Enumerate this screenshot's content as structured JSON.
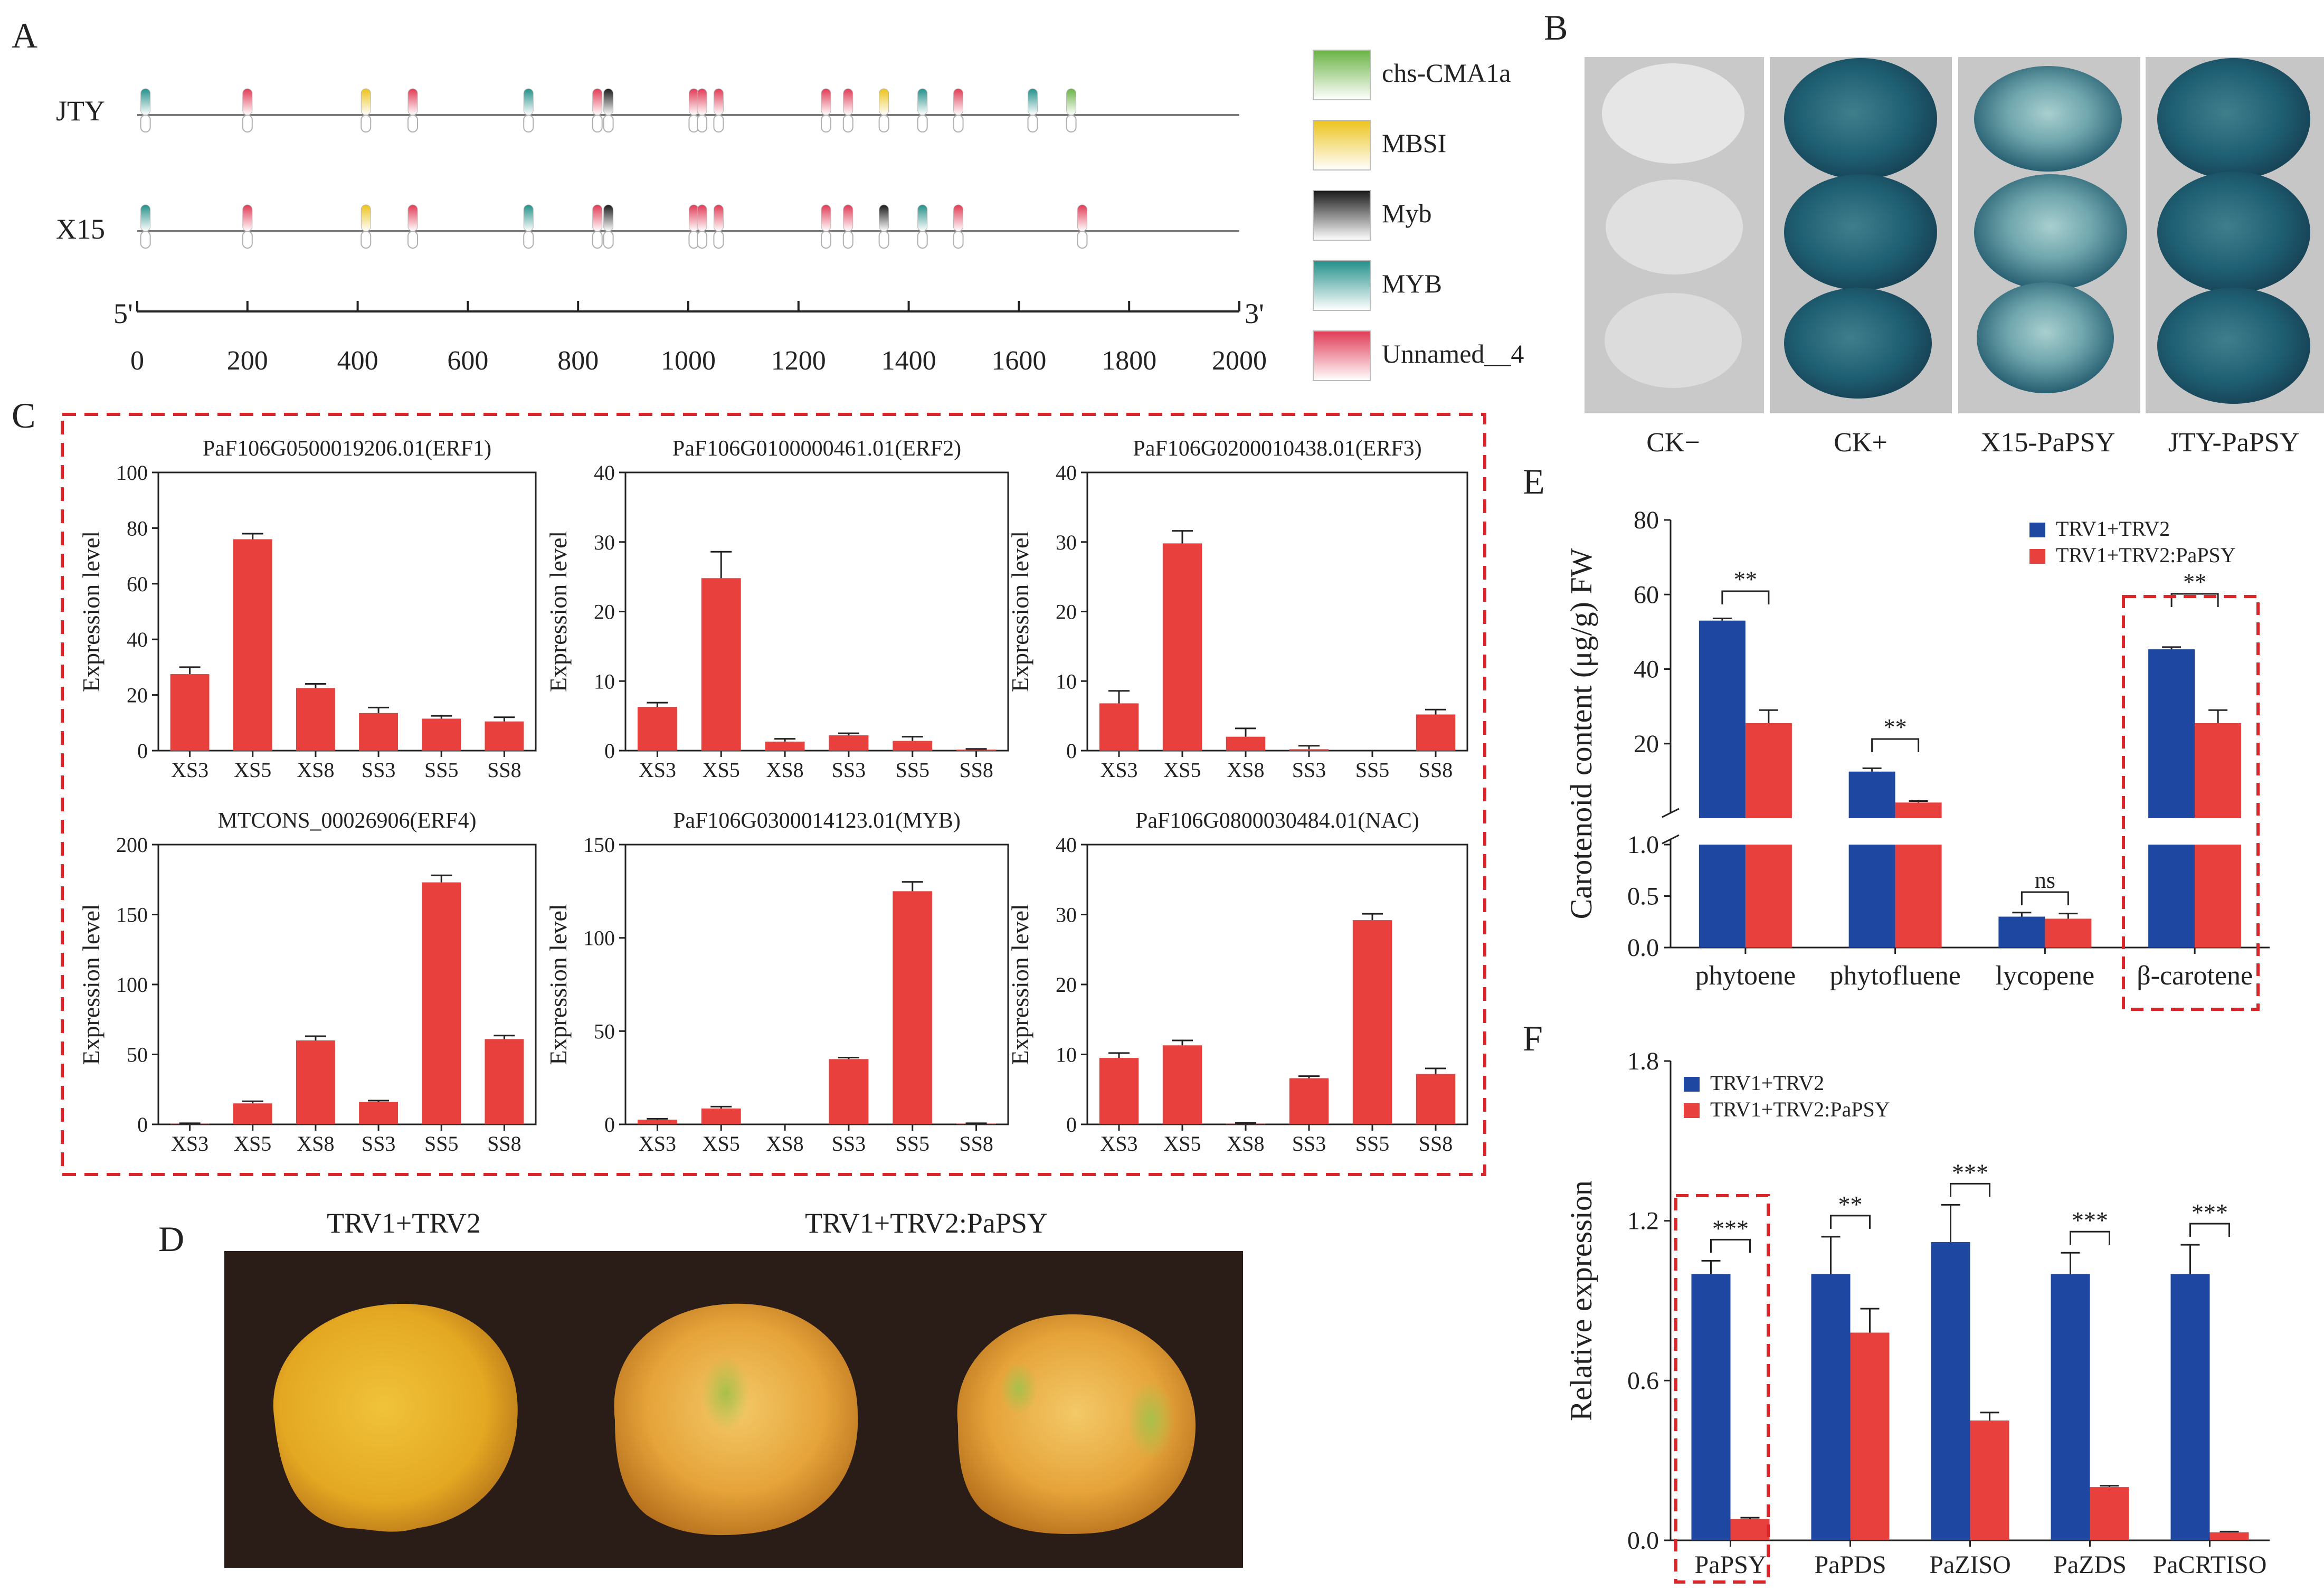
{
  "colors": {
    "red": "#e8413d",
    "blue": "#1d47a0",
    "dashed_red": "#d8262a",
    "axis": "#222222",
    "line": "#7a7a7a",
    "photo_bg": "#2a1d18",
    "plate_bg": "#c9c9c9"
  },
  "panel_letters": {
    "A": "A",
    "B": "B",
    "C": "C",
    "D": "D",
    "E": "E",
    "F": "F"
  },
  "panelA": {
    "sequences": [
      {
        "name": "JTY",
        "elements": [
          {
            "pos": 15,
            "type": "MYB"
          },
          {
            "pos": 200,
            "type": "Unnamed__4"
          },
          {
            "pos": 415,
            "type": "MBSI"
          },
          {
            "pos": 500,
            "type": "Unnamed__4"
          },
          {
            "pos": 710,
            "type": "MYB"
          },
          {
            "pos": 835,
            "type": "Unnamed__4"
          },
          {
            "pos": 855,
            "type": "Myb"
          },
          {
            "pos": 1010,
            "type": "Unnamed__4"
          },
          {
            "pos": 1025,
            "type": "Unnamed__4"
          },
          {
            "pos": 1055,
            "type": "Unnamed__4"
          },
          {
            "pos": 1250,
            "type": "Unnamed__4"
          },
          {
            "pos": 1290,
            "type": "Unnamed__4"
          },
          {
            "pos": 1355,
            "type": "MBSI"
          },
          {
            "pos": 1425,
            "type": "MYB"
          },
          {
            "pos": 1490,
            "type": "Unnamed__4"
          },
          {
            "pos": 1625,
            "type": "MYB"
          },
          {
            "pos": 1695,
            "type": "chs-CMA1a"
          }
        ]
      },
      {
        "name": "X15",
        "elements": [
          {
            "pos": 15,
            "type": "MYB"
          },
          {
            "pos": 200,
            "type": "Unnamed__4"
          },
          {
            "pos": 415,
            "type": "MBSI"
          },
          {
            "pos": 500,
            "type": "Unnamed__4"
          },
          {
            "pos": 710,
            "type": "MYB"
          },
          {
            "pos": 835,
            "type": "Unnamed__4"
          },
          {
            "pos": 855,
            "type": "Myb"
          },
          {
            "pos": 1010,
            "type": "Unnamed__4"
          },
          {
            "pos": 1025,
            "type": "Unnamed__4"
          },
          {
            "pos": 1055,
            "type": "Unnamed__4"
          },
          {
            "pos": 1250,
            "type": "Unnamed__4"
          },
          {
            "pos": 1290,
            "type": "Unnamed__4"
          },
          {
            "pos": 1355,
            "type": "Myb"
          },
          {
            "pos": 1425,
            "type": "MYB"
          },
          {
            "pos": 1490,
            "type": "Unnamed__4"
          },
          {
            "pos": 1715,
            "type": "Unnamed__4"
          }
        ]
      }
    ],
    "axis": {
      "min": 0,
      "max": 2000,
      "ticks": [
        0,
        200,
        400,
        600,
        800,
        1000,
        1200,
        1400,
        1600,
        1800,
        2000
      ],
      "left_label": "5'",
      "right_label": "3'"
    },
    "legend": [
      {
        "name": "chs-CMA1a",
        "color": "#6ab344"
      },
      {
        "name": "MBSI",
        "color": "#ecc31c"
      },
      {
        "name": "Myb",
        "color": "#1a1a1a"
      },
      {
        "name": "MYB",
        "color": "#23908a"
      },
      {
        "name": "Unnamed__4",
        "color": "#e03a55"
      }
    ]
  },
  "panelB": {
    "labels": [
      "CK−",
      "CK+",
      "X15-PaPSY",
      "JTY-PaPSY"
    ]
  },
  "chart_data": [
    {
      "type": "bar",
      "id": "C1",
      "title": "PaF106G0500019206.01(ERF1)",
      "ylabel": "Expression level",
      "categories": [
        "XS3",
        "XS5",
        "XS8",
        "SS3",
        "SS5",
        "SS8"
      ],
      "values": [
        27.5,
        76,
        22.5,
        13.5,
        11.5,
        10.5
      ],
      "errors": [
        2.5,
        2,
        1.5,
        2,
        1,
        1.5
      ],
      "ylim": [
        0,
        100
      ],
      "yticks": [
        "0",
        "20",
        "40",
        "60",
        "80",
        "100"
      ]
    },
    {
      "type": "bar",
      "id": "C2",
      "title": "PaF106G0100000461.01(ERF2)",
      "ylabel": "Expression level",
      "categories": [
        "XS3",
        "XS5",
        "XS8",
        "SS3",
        "SS5",
        "SS8"
      ],
      "values": [
        6.3,
        24.8,
        1.3,
        2.2,
        1.4,
        0.15
      ],
      "errors": [
        0.6,
        3.8,
        0.4,
        0.3,
        0.6,
        0.1
      ],
      "ylim": [
        0,
        40
      ],
      "yticks": [
        "0",
        "10",
        "20",
        "30",
        "40"
      ]
    },
    {
      "type": "bar",
      "id": "C3",
      "title": "PaF106G0200010438.01(ERF3)",
      "ylabel": "Expression level",
      "categories": [
        "XS3",
        "XS5",
        "XS8",
        "SS3",
        "SS5",
        "SS8"
      ],
      "values": [
        6.8,
        29.8,
        2,
        0.2,
        0,
        5.2
      ],
      "errors": [
        1.8,
        1.8,
        1.2,
        0.5,
        0,
        0.7
      ],
      "ylim": [
        0,
        40
      ],
      "yticks": [
        "0",
        "10",
        "20",
        "30",
        "40"
      ]
    },
    {
      "type": "bar",
      "id": "C4",
      "title": "MTCONS_00026906(ERF4)",
      "ylabel": "Expression level",
      "categories": [
        "XS3",
        "XS5",
        "XS8",
        "SS3",
        "SS5",
        "SS8"
      ],
      "values": [
        0.5,
        15,
        60,
        16,
        173,
        61
      ],
      "errors": [
        0.3,
        1.5,
        3,
        1,
        5,
        2.5
      ],
      "ylim": [
        0,
        200
      ],
      "yticks": [
        "0",
        "50",
        "100",
        "150",
        "200"
      ]
    },
    {
      "type": "bar",
      "id": "C5",
      "title": "PaF106G0300014123.01(MYB)",
      "ylabel": "Expression level",
      "categories": [
        "XS3",
        "XS5",
        "XS8",
        "SS3",
        "SS5",
        "SS8"
      ],
      "values": [
        2.5,
        8.5,
        0,
        35,
        125,
        0.4
      ],
      "errors": [
        0.5,
        1,
        0,
        0.8,
        5,
        0.2
      ],
      "ylim": [
        0,
        150
      ],
      "yticks": [
        "0",
        "50",
        "100",
        "150"
      ]
    },
    {
      "type": "bar",
      "id": "C6",
      "title": "PaF106G0800030484.01(NAC)",
      "ylabel": "Expression level",
      "categories": [
        "XS3",
        "XS5",
        "XS8",
        "SS3",
        "SS5",
        "SS8"
      ],
      "values": [
        9.5,
        11.3,
        0.1,
        6.6,
        29.2,
        7.2
      ],
      "errors": [
        0.7,
        0.7,
        0.1,
        0.3,
        0.9,
        0.8
      ],
      "ylim": [
        0,
        40
      ],
      "yticks": [
        "0",
        "10",
        "20",
        "30",
        "40"
      ]
    },
    {
      "type": "bar",
      "id": "E",
      "ylabel": "Carotenoid content (μg/g) FW",
      "categories": [
        "phytoene",
        "phytofluene",
        "lycopene",
        "β-carotene"
      ],
      "series": [
        {
          "name": "TRV1+TRV2",
          "values": [
            53,
            12.5,
            0.3,
            45.3
          ],
          "errors": [
            0.6,
            0.9,
            0.04,
            0.6
          ]
        },
        {
          "name": "TRV1+TRV2:PaPSY",
          "values": [
            25.5,
            4.2,
            0.28,
            25.5
          ],
          "errors": [
            3.5,
            0.4,
            0.05,
            3.5
          ]
        }
      ],
      "yticks_top": [
        "20",
        "40",
        "60",
        "80"
      ],
      "yticks_bottom": [
        "0.0",
        "0.5",
        "1.0"
      ],
      "significance": [
        "**",
        "**",
        "ns",
        "**"
      ]
    },
    {
      "type": "bar",
      "id": "F",
      "ylabel": "Relative expression",
      "categories": [
        "PaPSY",
        "PaPDS",
        "PaZISO",
        "PaZDS",
        "PaCRTISO"
      ],
      "series": [
        {
          "name": "TRV1+TRV2",
          "values": [
            1.0,
            1.0,
            1.12,
            1.0,
            1.0
          ],
          "errors": [
            0.05,
            0.14,
            0.14,
            0.08,
            0.11
          ]
        },
        {
          "name": "TRV1+TRV2:PaPSY",
          "values": [
            0.08,
            0.78,
            0.45,
            0.2,
            0.03
          ],
          "errors": [
            0.005,
            0.09,
            0.03,
            0.005,
            0.003
          ]
        }
      ],
      "ylim": [
        0,
        1.8
      ],
      "yticks": [
        "0.0",
        "0.6",
        "1.2",
        "1.8"
      ],
      "significance": [
        "***",
        "**",
        "***",
        "***",
        "***"
      ]
    }
  ],
  "panelD": {
    "labels": [
      "TRV1+TRV2",
      "TRV1+TRV2:PaPSY"
    ]
  }
}
